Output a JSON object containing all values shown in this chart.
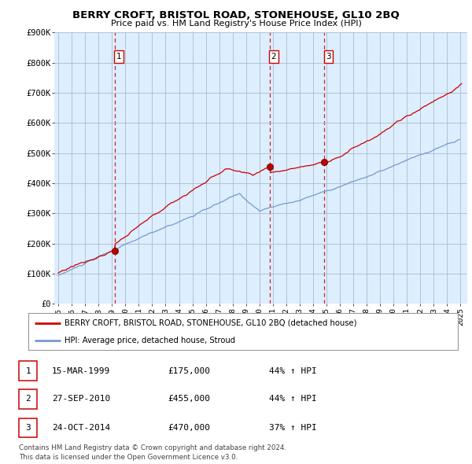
{
  "title": "BERRY CROFT, BRISTOL ROAD, STONEHOUSE, GL10 2BQ",
  "subtitle": "Price paid vs. HM Land Registry's House Price Index (HPI)",
  "background_color": "#ccddef",
  "plot_bg_color": "#ddeeff",
  "fig_bg_color": "#ffffff",
  "red_line_color": "#cc0000",
  "blue_line_color": "#7799cc",
  "grid_color": "#aabbcc",
  "dashed_line_color": "#cc0000",
  "sale_dates_yr": [
    1999.204,
    2010.748,
    2014.831
  ],
  "sale_prices": [
    175000,
    455000,
    470000
  ],
  "sale_labels": [
    "1",
    "2",
    "3"
  ],
  "table_rows": [
    {
      "num": "1",
      "date": "15-MAR-1999",
      "price": "£175,000",
      "hpi": "44% ↑ HPI"
    },
    {
      "num": "2",
      "date": "27-SEP-2010",
      "price": "£455,000",
      "hpi": "44% ↑ HPI"
    },
    {
      "num": "3",
      "date": "24-OCT-2014",
      "price": "£470,000",
      "hpi": "37% ↑ HPI"
    }
  ],
  "legend_red": "BERRY CROFT, BRISTOL ROAD, STONEHOUSE, GL10 2BQ (detached house)",
  "legend_blue": "HPI: Average price, detached house, Stroud",
  "footer": "Contains HM Land Registry data © Crown copyright and database right 2024.\nThis data is licensed under the Open Government Licence v3.0.",
  "ylim": [
    0,
    900000
  ],
  "ytick_vals": [
    0,
    100000,
    200000,
    300000,
    400000,
    500000,
    600000,
    700000,
    800000,
    900000
  ],
  "ytick_labels": [
    "£0",
    "£100K",
    "£200K",
    "£300K",
    "£400K",
    "£500K",
    "£600K",
    "£700K",
    "£800K",
    "£900K"
  ],
  "xstart_year": 1995,
  "xend_year": 2025
}
